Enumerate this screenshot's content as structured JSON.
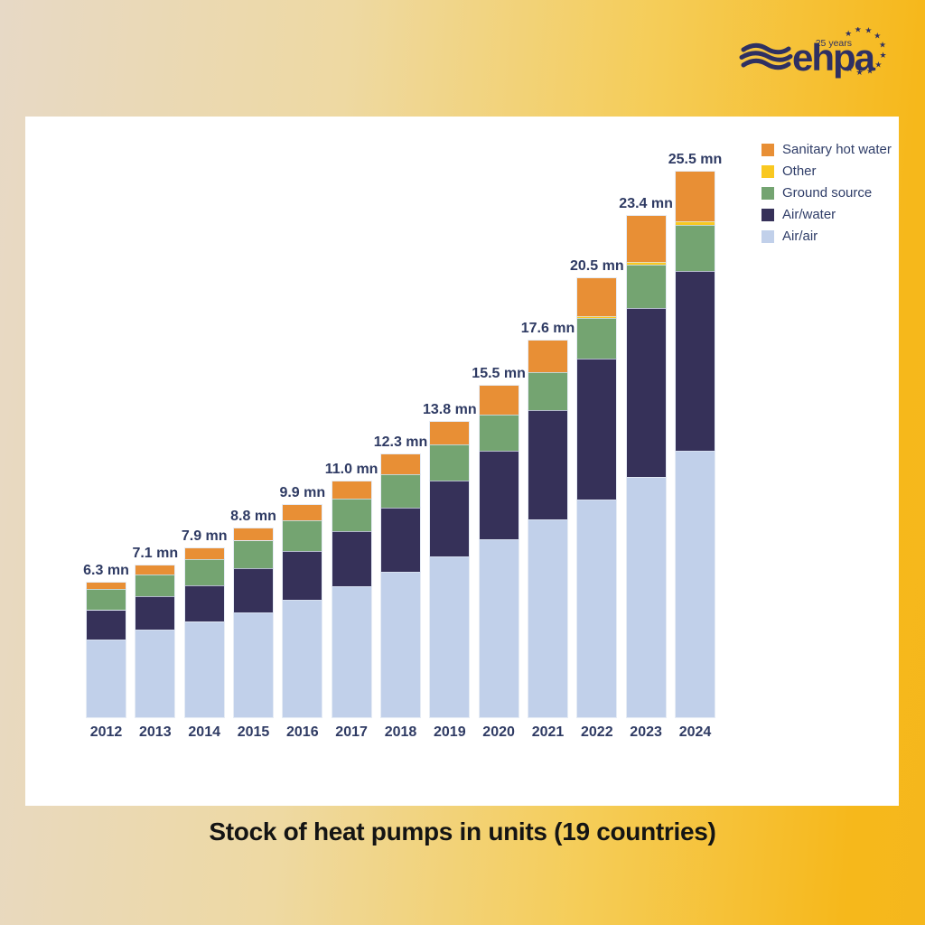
{
  "brand": {
    "gold": "#f6b81b",
    "navy": "#2e3062"
  },
  "logo": {
    "brand": "ehpa",
    "badge": "25 years"
  },
  "title": "Stock of heat pumps in units (19 countries)",
  "legend": [
    {
      "label": "Sanitary hot water",
      "color": "#e88f35"
    },
    {
      "label": "Other",
      "color": "#f9c820"
    },
    {
      "label": "Ground source",
      "color": "#74a471"
    },
    {
      "label": "Air/water",
      "color": "#363159"
    },
    {
      "label": "Air/air",
      "color": "#c1d0ea"
    }
  ],
  "chart_data": {
    "type": "bar",
    "stacked": true,
    "unit": "mn units",
    "title": "Stock of heat pumps in units (19 countries)",
    "xlabel": "",
    "ylabel": "",
    "grid": false,
    "legend_position": "top-right",
    "ylim": [
      0,
      27
    ],
    "categories": [
      "2012",
      "2013",
      "2014",
      "2015",
      "2016",
      "2017",
      "2018",
      "2019",
      "2020",
      "2021",
      "2022",
      "2023",
      "2024"
    ],
    "series": [
      {
        "name": "Air/air",
        "color": "#c1d0ea",
        "values": [
          3.65,
          4.1,
          4.45,
          4.9,
          5.5,
          6.1,
          6.8,
          7.5,
          8.3,
          9.25,
          10.15,
          11.2,
          12.45
        ]
      },
      {
        "name": "Air/water",
        "color": "#363159",
        "values": [
          1.35,
          1.55,
          1.7,
          2.05,
          2.25,
          2.6,
          3.0,
          3.55,
          4.15,
          5.1,
          6.6,
          7.9,
          8.4
        ]
      },
      {
        "name": "Ground source",
        "color": "#74a471",
        "values": [
          1.0,
          1.0,
          1.25,
          1.3,
          1.45,
          1.5,
          1.55,
          1.7,
          1.7,
          1.75,
          1.9,
          2.05,
          2.15
        ]
      },
      {
        "name": "Other",
        "color": "#f9c820",
        "values": [
          0,
          0,
          0,
          0,
          0,
          0,
          0,
          0,
          0,
          0,
          0.1,
          0.1,
          0.15
        ]
      },
      {
        "name": "Sanitary hot water",
        "color": "#e88f35",
        "values": [
          0.3,
          0.45,
          0.5,
          0.55,
          0.7,
          0.8,
          0.95,
          1.05,
          1.35,
          1.5,
          1.75,
          2.15,
          2.35
        ]
      }
    ],
    "totals": [
      6.3,
      7.1,
      7.9,
      8.8,
      9.9,
      11.0,
      12.3,
      13.8,
      15.5,
      17.6,
      20.5,
      23.4,
      25.5
    ],
    "totals_labels": [
      "6.3 mn",
      "7.1 mn",
      "7.9 mn",
      "8.8 mn",
      "9.9 mn",
      "11.0 mn",
      "12.3 mn",
      "13.8 mn",
      "15.5 mn",
      "17.6 mn",
      "20.5 mn",
      "23.4 mn",
      "25.5 mn"
    ]
  }
}
